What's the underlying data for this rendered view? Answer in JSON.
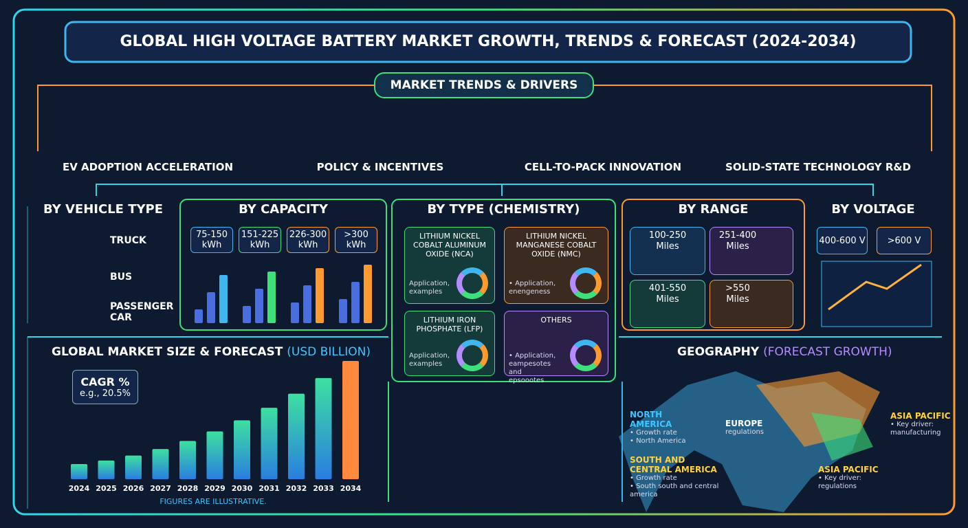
{
  "header": {
    "title": "GLOBAL HIGH VOLTAGE BATTERY MARKET GROWTH, TRENDS & FORECAST (2024-2034)"
  },
  "trends": {
    "title": "MARKET TRENDS & DRIVERS",
    "items": [
      "EV ADOPTION ACCELERATION",
      "POLICY & INCENTIVES",
      "CELL-TO-PACK INNOVATION",
      "SOLID-STATE TECHNOLOGY R&D"
    ]
  },
  "vehicle_type": {
    "title": "BY VEHICLE TYPE",
    "items": [
      "TRUCK",
      "BUS",
      "PASSENGER CAR"
    ]
  },
  "capacity": {
    "title": "BY CAPACITY",
    "items": [
      "75-150 kWh",
      "151-225 kWh",
      "226-300 kWh",
      ">300 kWh"
    ]
  },
  "chemistry": {
    "title": "BY TYPE (CHEMISTRY)",
    "items": [
      {
        "name": "LITHIUM NICKEL COBALT ALUMINUM OXIDE (NCA)",
        "note": "Application, examples"
      },
      {
        "name": "LITHIUM NICKEL MANGANESE COBALT OXIDE (NMC)",
        "note": "• Application, enengeness"
      },
      {
        "name": "LITHIUM IRON PHOSPHATE (LFP)",
        "note": "Application, examples"
      },
      {
        "name": "OTHERS",
        "note": "• Application, eampesotes and epsoootes"
      }
    ]
  },
  "range": {
    "title": "BY RANGE",
    "items": [
      "100-250 Miles",
      "251-400 Miles",
      "401-550 Miles",
      ">550 Miles"
    ]
  },
  "voltage": {
    "title": "BY VOLTAGE",
    "items": [
      "400-600 V",
      ">600 V"
    ]
  },
  "market": {
    "title": "GLOBAL MARKET SIZE & FORECAST",
    "unit": "(USD BILLION)",
    "cagr": "CAGR %",
    "cagr_example": "e.g., 20.5%",
    "years": [
      "2024",
      "2025",
      "2026",
      "2027",
      "2028",
      "2029",
      "2030",
      "2031",
      "2032",
      "2033",
      "2034"
    ],
    "footnote": "FIGURES ARE ILLUSTRATIVE."
  },
  "geography": {
    "title": "GEOGRAPHY",
    "subtitle": "(FORECAST GROWTH)",
    "regions": [
      {
        "name": "NORTH AMERICA",
        "notes": [
          "• Growth rate",
          "• North America"
        ]
      },
      {
        "name": "EUROPE",
        "notes": [
          "regulations"
        ]
      },
      {
        "name": "SOUTH AND CENTRAL AMERICA",
        "notes": [
          "• Growth rate",
          "• South south and central america"
        ]
      },
      {
        "name": "ASIA PACIFIC",
        "notes": [
          "• Key driver:",
          "manufacturing"
        ]
      },
      {
        "name": "ASIA PACIFIC",
        "notes": [
          "• Key driver:",
          "regulations"
        ]
      }
    ]
  }
}
